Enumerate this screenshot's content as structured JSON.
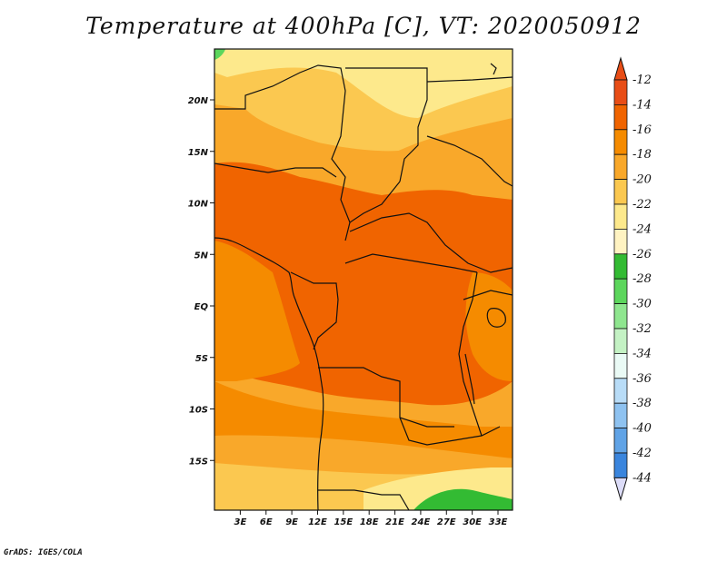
{
  "title": "Temperature at 400hPa [C], VT: 2020050912",
  "credit": "GrADS: IGES/COLA",
  "lat_labels": [
    "20N",
    "15N",
    "10N",
    "5N",
    "EQ",
    "5S",
    "10S",
    "15S"
  ],
  "lon_labels": [
    "3E",
    "6E",
    "9E",
    "12E",
    "15E",
    "18E",
    "21E",
    "24E",
    "27E",
    "30E",
    "33E"
  ],
  "colorbar": {
    "labels": [
      "-12",
      "-14",
      "-16",
      "-18",
      "-20",
      "-22",
      "-24",
      "-26",
      "-28",
      "-30",
      "-32",
      "-34",
      "-36",
      "-38",
      "-40",
      "-42",
      "-44"
    ],
    "colors": [
      "#e84d16",
      "#f06400",
      "#f58b00",
      "#f9a82a",
      "#fbc850",
      "#fde98c",
      "#fff3c2",
      "#33bb33",
      "#5cd65c",
      "#8fe68f",
      "#c4f2c4",
      "#eafaf5",
      "#b8dcf7",
      "#8ec2f0",
      "#60a3e6",
      "#3a85dd",
      "#1f66d0",
      "#0f4cba",
      "#0033a0",
      "#0a1a78"
    ],
    "top_arrow_color": "#e84d16",
    "bottom_arrow_color": "#dcdcf8"
  },
  "chart_data": {
    "type": "heatmap",
    "title": "Temperature at 400hPa [C], VT: 2020050912",
    "xlabel": "",
    "ylabel": "",
    "x_range": [
      "0E",
      "34.5E"
    ],
    "y_range": [
      "20S",
      "24.5N"
    ],
    "levels": [
      -44,
      -42,
      -40,
      -38,
      -36,
      -34,
      -32,
      -30,
      -28,
      -26,
      -24,
      -22,
      -20,
      -18,
      -16,
      -14,
      -12
    ],
    "units": "C"
  }
}
